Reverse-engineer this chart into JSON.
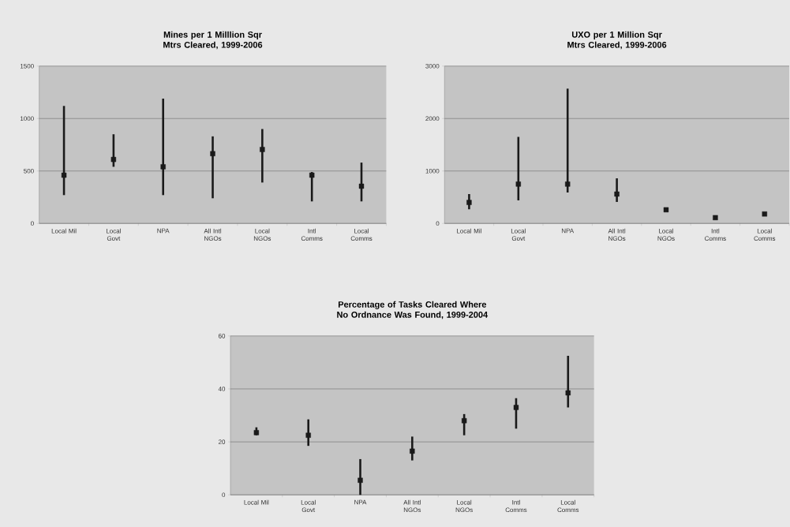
{
  "chart_data": [
    {
      "type": "scatter",
      "title": "Mines per 1 Milllion Sqr Mtrs Cleared, 1999-2006",
      "categories": [
        "Local Mil",
        "Local Govt",
        "NPA",
        "All Intl NGOs",
        "Local NGOs",
        "Intl Comms",
        "Local Comms"
      ],
      "values": [
        460,
        610,
        540,
        665,
        705,
        460,
        355
      ],
      "errors": [
        [
          270,
          1120
        ],
        [
          540,
          850
        ],
        [
          270,
          1190
        ],
        [
          240,
          830
        ],
        [
          390,
          900
        ],
        [
          210,
          490
        ],
        [
          210,
          580
        ]
      ],
      "color": "#1a1a1a",
      "marker": "square",
      "ylim": [
        0,
        1500
      ],
      "yticks": [
        0,
        500,
        1000,
        1500
      ],
      "grid": "y"
    },
    {
      "type": "scatter",
      "title": "UXO per 1 Million Sqr Mtrs Cleared, 1999-2006",
      "categories": [
        "Local Mil",
        "Local Govt",
        "NPA",
        "All Intl NGOs",
        "Local NGOs",
        "Intl Comms",
        "Local Comms"
      ],
      "values": [
        400,
        750,
        750,
        560,
        260,
        110,
        180
      ],
      "errors": [
        [
          270,
          560
        ],
        [
          440,
          1650
        ],
        [
          590,
          2570
        ],
        [
          410,
          860
        ],
        null,
        null,
        null
      ],
      "color": "#1a1a1a",
      "marker": "square",
      "ylim": [
        0,
        3000
      ],
      "yticks": [
        0,
        1000,
        2000,
        3000
      ],
      "grid": "y"
    },
    {
      "type": "scatter",
      "title": "Percentage of Tasks Cleared Where No Ordnance Was Found, 1999-2004",
      "categories": [
        "Local Mil",
        "Local Govt",
        "NPA",
        "All Intl NGOs",
        "Local NGOs",
        "Intl Comms",
        "Local Comms"
      ],
      "values": [
        23.5,
        22.5,
        5.5,
        16.5,
        28,
        33,
        38.5
      ],
      "errors": [
        [
          22.5,
          25.5
        ],
        [
          18.5,
          28.5
        ],
        [
          0,
          13.5
        ],
        [
          13,
          22
        ],
        [
          22.5,
          30.5
        ],
        [
          25,
          36.5
        ],
        [
          33,
          52.5
        ]
      ],
      "color": "#1a1a1a",
      "marker": "square",
      "ylim": [
        0,
        60
      ],
      "yticks": [
        0,
        20,
        40,
        60
      ],
      "grid": "y"
    }
  ]
}
